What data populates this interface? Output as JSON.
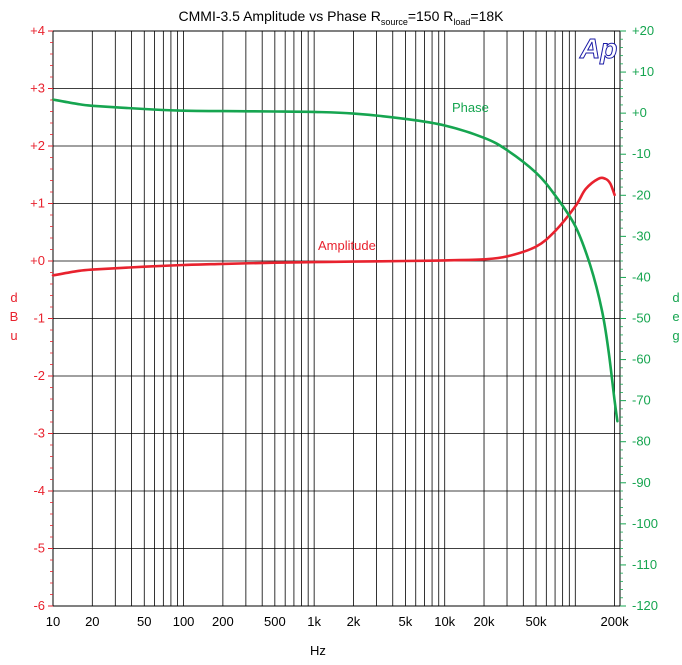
{
  "chart_data": {
    "type": "line",
    "title": {
      "prefix": "CMMI-3.5  Amplitude vs Phase  R",
      "source_sub": "source",
      "source_val": "=150  R",
      "load_sub": "load",
      "load_val": "=18K"
    },
    "logo": "Ap",
    "xlabel": "Hz",
    "ylabel_left": [
      "d",
      "B",
      "u"
    ],
    "ylabel_right": [
      "d",
      "e",
      "g"
    ],
    "x_scale": "log",
    "xlim": [
      10,
      220000
    ],
    "ylim_left": [
      -6,
      4
    ],
    "ylim_right": [
      -120,
      20
    ],
    "grid": true,
    "x_ticks": [
      {
        "value": 10,
        "label": "10"
      },
      {
        "value": 20,
        "label": "20"
      },
      {
        "value": 50,
        "label": "50"
      },
      {
        "value": 100,
        "label": "100"
      },
      {
        "value": 200,
        "label": "200"
      },
      {
        "value": 500,
        "label": "500"
      },
      {
        "value": 1000,
        "label": "1k"
      },
      {
        "value": 2000,
        "label": "2k"
      },
      {
        "value": 5000,
        "label": "5k"
      },
      {
        "value": 10000,
        "label": "10k"
      },
      {
        "value": 20000,
        "label": "20k"
      },
      {
        "value": 50000,
        "label": "50k"
      },
      {
        "value": 200000,
        "label": "200k"
      }
    ],
    "y_ticks_left": [
      "+4",
      "+3",
      "+2",
      "+1",
      "+0",
      "-1",
      "-2",
      "-3",
      "-4",
      "-5",
      "-6"
    ],
    "y_ticks_right": [
      "+20",
      "+10",
      "+0",
      "-10",
      "-20",
      "-30",
      "-40",
      "-50",
      "-60",
      "-70",
      "-80",
      "-90",
      "-100",
      "-110",
      "-120"
    ],
    "series": [
      {
        "name": "Amplitude",
        "axis": "left",
        "color": "#e8222e",
        "points": [
          [
            10,
            -0.25
          ],
          [
            15,
            -0.18
          ],
          [
            20,
            -0.15
          ],
          [
            50,
            -0.1
          ],
          [
            100,
            -0.07
          ],
          [
            200,
            -0.05
          ],
          [
            500,
            -0.03
          ],
          [
            1000,
            -0.02
          ],
          [
            2000,
            -0.01
          ],
          [
            5000,
            0.0
          ],
          [
            10000,
            0.01
          ],
          [
            20000,
            0.03
          ],
          [
            30000,
            0.08
          ],
          [
            50000,
            0.25
          ],
          [
            70000,
            0.52
          ],
          [
            100000,
            0.95
          ],
          [
            120000,
            1.25
          ],
          [
            150000,
            1.43
          ],
          [
            170000,
            1.43
          ],
          [
            185000,
            1.35
          ],
          [
            200000,
            1.15
          ]
        ]
      },
      {
        "name": "Phase",
        "axis": "right",
        "color": "#16a550",
        "points": [
          [
            10,
            3.3
          ],
          [
            15,
            2.3
          ],
          [
            20,
            1.8
          ],
          [
            50,
            1.0
          ],
          [
            100,
            0.6
          ],
          [
            200,
            0.5
          ],
          [
            500,
            0.4
          ],
          [
            1000,
            0.3
          ],
          [
            2000,
            -0.1
          ],
          [
            5000,
            -1.4
          ],
          [
            10000,
            -3.0
          ],
          [
            20000,
            -6.0
          ],
          [
            30000,
            -9.0
          ],
          [
            50000,
            -14.5
          ],
          [
            70000,
            -20
          ],
          [
            100000,
            -27.5
          ],
          [
            130000,
            -37
          ],
          [
            160000,
            -48
          ],
          [
            180000,
            -58
          ],
          [
            200000,
            -70
          ],
          [
            210000,
            -75
          ]
        ]
      }
    ],
    "annotations": [
      "Phase",
      "Amplitude"
    ]
  }
}
